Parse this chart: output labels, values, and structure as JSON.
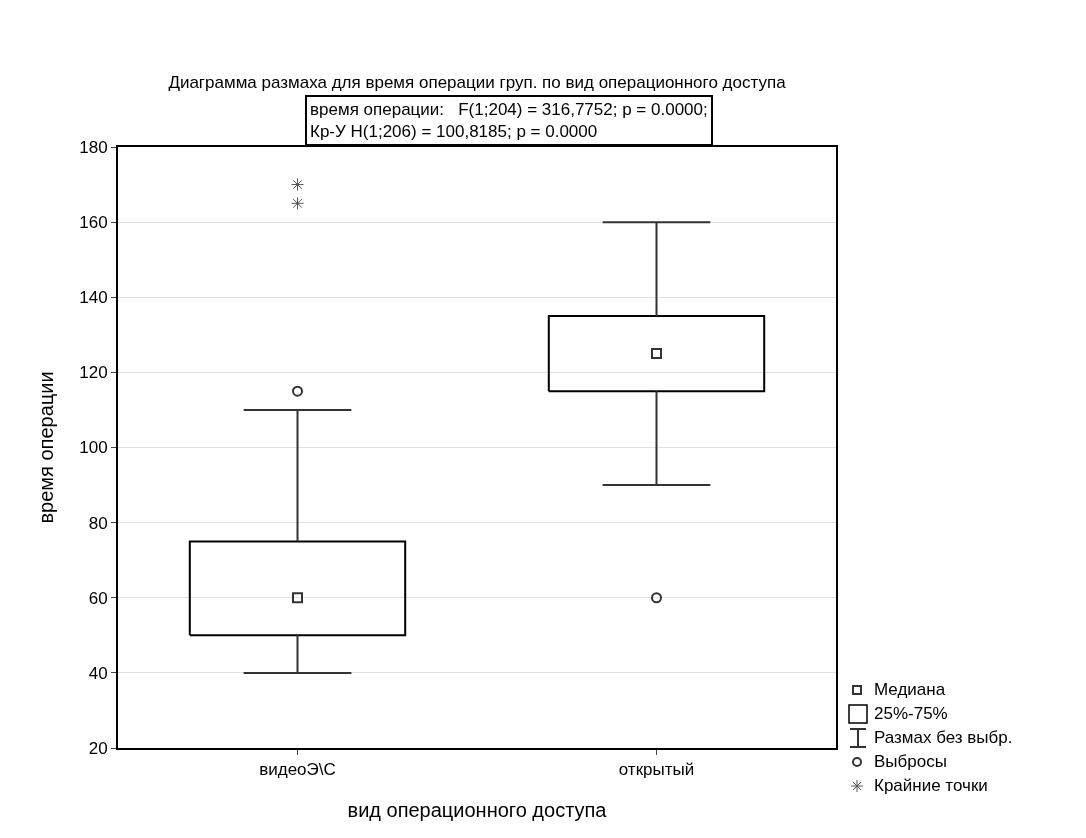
{
  "chart_data": {
    "type": "box",
    "title": "Диаграмма размаха для время операции груп. по вид операционного доступа",
    "xlabel": "вид операционного доступа",
    "ylabel": "время операции",
    "categories": [
      "видеоЭ\\С",
      "открытый"
    ],
    "ylim": [
      20,
      180
    ],
    "yticks": [
      20,
      40,
      60,
      80,
      100,
      120,
      140,
      160,
      180
    ],
    "grid": "y",
    "legend": "bottom right",
    "annotations": [
      "время операции:   F(1;204) = 316,7752; p = 0.0000;",
      "Кр-У H(1;206) = 100,8185; p = 0.0000",
      "Медиана",
      "Размах без выбр.",
      "Выбросы"
    ],
    "series": [
      {
        "type": "box",
        "name": "25%-75%",
        "color": "#000000",
        "boxes": [
          {
            "low": 40,
            "q1": 50,
            "median": 60,
            "q3": 75,
            "high": 110,
            "outliers": [
              115
            ]
          },
          {
            "low": 90,
            "q1": 115,
            "median": 125,
            "q3": 135,
            "high": 160,
            "outliers": [
              60
            ]
          }
        ]
      },
      {
        "type": "scatter",
        "name": "Крайние точки",
        "color": "#555555",
        "marker": "cross",
        "x": [
          "видеоЭ\\С",
          "видеоЭ\\С"
        ],
        "values": [
          165,
          170
        ]
      }
    ]
  }
}
